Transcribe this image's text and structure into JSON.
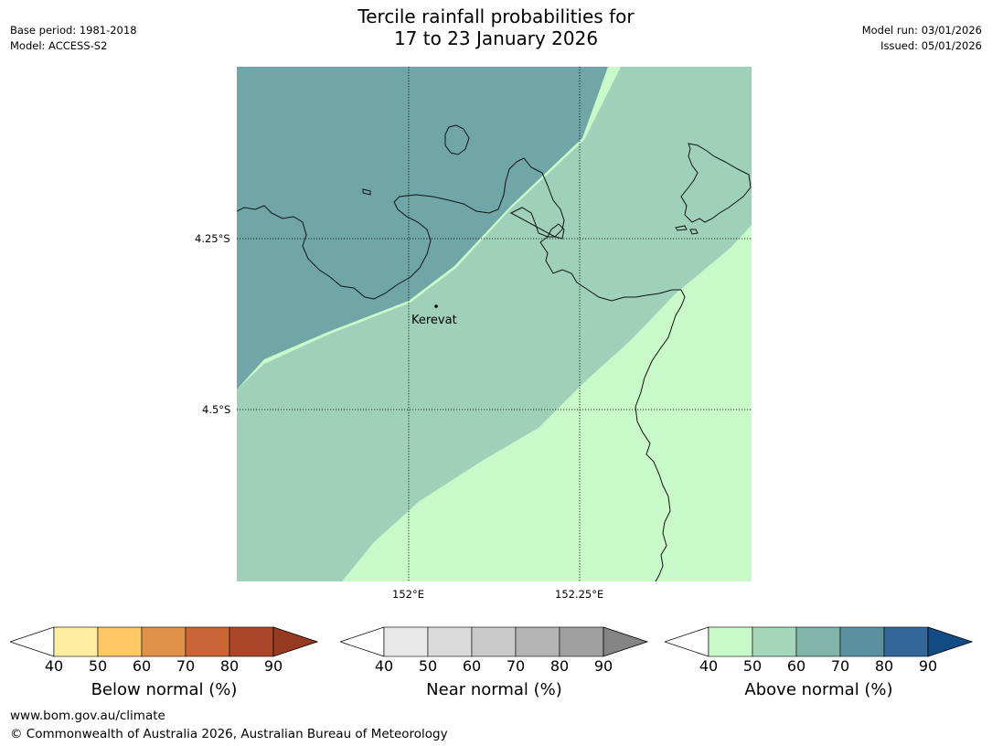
{
  "title": {
    "line1": "Tercile rainfall probabilities for",
    "line2": "17 to 23 January 2026"
  },
  "meta_left": {
    "base_period": "Base period: 1981-2018",
    "model": "Model: ACCESS-S2"
  },
  "meta_right": {
    "model_run": "Model run: 03/01/2026",
    "issued": "Issued: 05/01/2026"
  },
  "map": {
    "latitude_labels": [
      "4.25°S",
      "4.5°S"
    ],
    "longitude_labels": [
      "152°E",
      "152.25°E"
    ],
    "place": "Kerevat",
    "zones": [
      {
        "category": "Above normal",
        "range": "70-80",
        "color": "#70a6a8"
      },
      {
        "category": "Above normal",
        "range": "50-70",
        "color": "#9fd1ba"
      },
      {
        "category": "Above normal",
        "range": "40-50",
        "color": "#caf9c9"
      }
    ]
  },
  "colorbars": [
    {
      "label": "Below normal (%)",
      "ticks": [
        "40",
        "50",
        "60",
        "70",
        "80",
        "90"
      ],
      "colors": [
        "#ffeda0",
        "#fec965",
        "#e0914a",
        "#cc6535",
        "#ab4628"
      ],
      "extend_color": "#963a21"
    },
    {
      "label": "Near normal (%)",
      "ticks": [
        "40",
        "50",
        "60",
        "70",
        "80",
        "90"
      ],
      "colors": [
        "#e8e8e8",
        "#dadada",
        "#cacaca",
        "#b4b4b4",
        "#a0a0a0"
      ],
      "extend_color": "#848484"
    },
    {
      "label": "Above normal (%)",
      "ticks": [
        "40",
        "50",
        "60",
        "70",
        "80",
        "90"
      ],
      "colors": [
        "#caf9c9",
        "#a5d8bb",
        "#82b5aa",
        "#5b90a0",
        "#336699"
      ],
      "extend_color": "#134b85"
    }
  ],
  "footer": {
    "url": "www.bom.gov.au/climate",
    "copyright": "© Commonwealth of Australia 2026, Australian Bureau of Meteorology"
  }
}
